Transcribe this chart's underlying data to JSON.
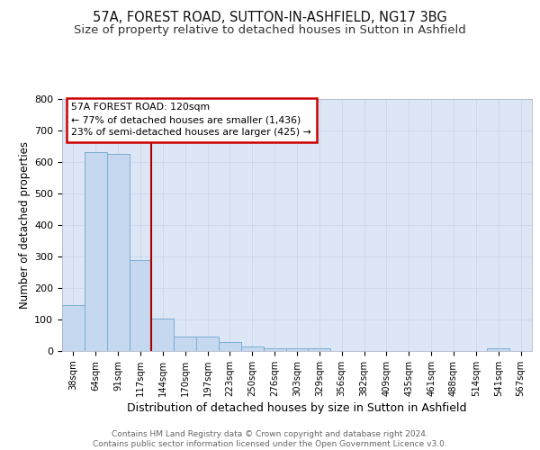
{
  "title": "57A, FOREST ROAD, SUTTON-IN-ASHFIELD, NG17 3BG",
  "subtitle": "Size of property relative to detached houses in Sutton in Ashfield",
  "xlabel": "Distribution of detached houses by size in Sutton in Ashfield",
  "ylabel": "Number of detached properties",
  "categories": [
    "38sqm",
    "64sqm",
    "91sqm",
    "117sqm",
    "144sqm",
    "170sqm",
    "197sqm",
    "223sqm",
    "250sqm",
    "276sqm",
    "303sqm",
    "329sqm",
    "356sqm",
    "382sqm",
    "409sqm",
    "435sqm",
    "461sqm",
    "488sqm",
    "514sqm",
    "541sqm",
    "567sqm"
  ],
  "values": [
    147,
    630,
    627,
    290,
    103,
    47,
    45,
    30,
    13,
    10,
    10,
    10,
    0,
    0,
    0,
    0,
    0,
    0,
    0,
    10,
    0
  ],
  "bar_color": "#c5d8f0",
  "bar_edge_color": "#7aadd4",
  "vline_color": "#aa0000",
  "annotation_text": "57A FOREST ROAD: 120sqm\n← 77% of detached houses are smaller (1,436)\n23% of semi-detached houses are larger (425) →",
  "annotation_box_color": "#ffffff",
  "annotation_box_edge": "#cc0000",
  "bg_color": "#dce6f5",
  "ylim": [
    0,
    800
  ],
  "yticks": [
    0,
    100,
    200,
    300,
    400,
    500,
    600,
    700,
    800
  ],
  "footer": "Contains HM Land Registry data © Crown copyright and database right 2024.\nContains public sector information licensed under the Open Government Licence v3.0.",
  "title_fontsize": 10.5,
  "subtitle_fontsize": 9.5,
  "ylabel_fontsize": 8.5,
  "xlabel_fontsize": 9
}
